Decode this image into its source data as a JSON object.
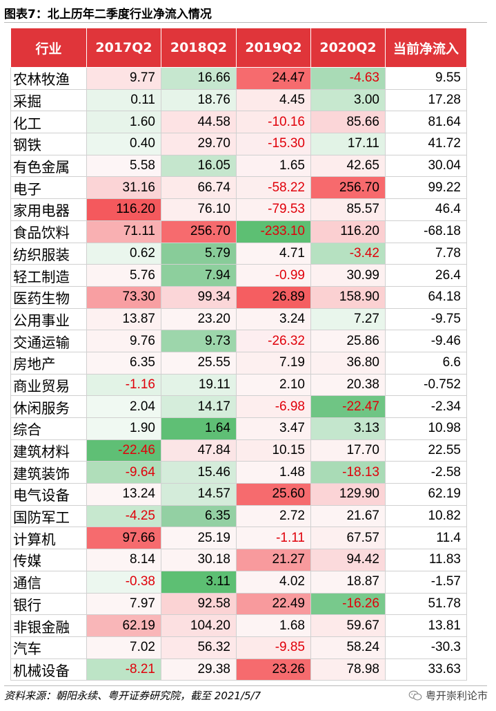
{
  "title": "图表7：北上历年二季度行业净流入情况",
  "table": {
    "headers": [
      "行业",
      "2017Q2",
      "2018Q2",
      "2019Q2",
      "2020Q2",
      "当前净流入"
    ],
    "rows": [
      [
        "农林牧渔",
        "9.77",
        "16.66",
        "24.47",
        "-4.63",
        "9.55"
      ],
      [
        "采掘",
        "0.11",
        "18.76",
        "4.45",
        "3.00",
        "17.28"
      ],
      [
        "化工",
        "1.60",
        "44.58",
        "-10.16",
        "85.66",
        "81.64"
      ],
      [
        "钢铁",
        "0.40",
        "29.70",
        "-15.30",
        "17.11",
        "41.72"
      ],
      [
        "有色金属",
        "5.58",
        "16.05",
        "1.65",
        "42.65",
        "30.04"
      ],
      [
        "电子",
        "31.16",
        "66.74",
        "-58.22",
        "256.70",
        "99.22"
      ],
      [
        "家用电器",
        "116.20",
        "76.10",
        "-79.53",
        "85.57",
        "46.4"
      ],
      [
        "食品饮料",
        "71.11",
        "256.70",
        "-233.10",
        "116.20",
        "-68.18"
      ],
      [
        "纺织服装",
        "0.62",
        "5.79",
        "4.71",
        "-3.42",
        "7.78"
      ],
      [
        "轻工制造",
        "5.76",
        "7.94",
        "-0.99",
        "30.99",
        "26.4"
      ],
      [
        "医药生物",
        "73.30",
        "99.34",
        "26.89",
        "158.90",
        "64.18"
      ],
      [
        "公用事业",
        "13.87",
        "23.20",
        "3.24",
        "7.27",
        "-9.75"
      ],
      [
        "交通运输",
        "9.76",
        "9.73",
        "-26.32",
        "25.86",
        "-9.46"
      ],
      [
        "房地产",
        "6.35",
        "25.55",
        "7.19",
        "36.80",
        "6.6"
      ],
      [
        "商业贸易",
        "-1.16",
        "19.11",
        "2.10",
        "20.38",
        "-0.752"
      ],
      [
        "休闲服务",
        "2.04",
        "14.17",
        "-6.98",
        "-22.47",
        "-2.34"
      ],
      [
        "综合",
        "1.90",
        "1.64",
        "3.47",
        "3.13",
        "10.98"
      ],
      [
        "建筑材料",
        "-22.46",
        "47.84",
        "10.15",
        "17.70",
        "22.55"
      ],
      [
        "建筑装饰",
        "-9.64",
        "15.46",
        "1.48",
        "-18.13",
        "-2.58"
      ],
      [
        "电气设备",
        "13.24",
        "14.57",
        "25.60",
        "129.90",
        "62.19"
      ],
      [
        "国防军工",
        "-4.25",
        "6.35",
        "2.72",
        "21.67",
        "10.82"
      ],
      [
        "计算机",
        "97.66",
        "25.19",
        "-1.11",
        "67.57",
        "11.4"
      ],
      [
        "传媒",
        "8.14",
        "30.18",
        "21.27",
        "94.42",
        "11.83"
      ],
      [
        "通信",
        "-0.38",
        "3.11",
        "4.02",
        "18.87",
        "-1.57"
      ],
      [
        "银行",
        "7.97",
        "92.58",
        "22.49",
        "-16.26",
        "51.78"
      ],
      [
        "非银金融",
        "62.19",
        "104.20",
        "1.68",
        "59.67",
        "13.81"
      ],
      [
        "汽车",
        "7.02",
        "56.32",
        "-9.85",
        "58.24",
        "-30.3"
      ],
      [
        "机械设备",
        "-8.21",
        "29.38",
        "23.26",
        "78.98",
        "33.63"
      ]
    ],
    "fills": [
      [
        "#ffffff",
        "#fde3e4",
        "#c6e7cf",
        "#f66b6e",
        "#a9dbb6",
        "#ffffff"
      ],
      [
        "#ffffff",
        "#e8f5eb",
        "#e6f4e9",
        "#fdeaea",
        "#c7e8cf",
        "#ffffff"
      ],
      [
        "#ffffff",
        "#e7f4ea",
        "#fde3e4",
        "#fdeaea",
        "#fbd6d8",
        "#ffffff"
      ],
      [
        "#ffffff",
        "#ecf7ef",
        "#fde8e9",
        "#fcedee",
        "#e2f3e6",
        "#ffffff"
      ],
      [
        "#ffffff",
        "#fdf5f6",
        "#c5e6cd",
        "#fdf1f2",
        "#fdeded",
        "#ffffff"
      ],
      [
        "#ffffff",
        "#fbd4d6",
        "#fdeaea",
        "#fceeee",
        "#f76a6d",
        "#ffffff"
      ],
      [
        "#ffffff",
        "#f4595d",
        "#fdeeee",
        "#fdf1f1",
        "#fdeded",
        "#ffffff"
      ],
      [
        "#ffffff",
        "#f9b0b2",
        "#f66b6e",
        "#5dbf73",
        "#fbcfd1",
        "#ffffff"
      ],
      [
        "#ffffff",
        "#eaf6ed",
        "#88cc99",
        "#fdf4f4",
        "#b6e1c1",
        "#ffffff"
      ],
      [
        "#ffffff",
        "#fdf4f4",
        "#8dcf9d",
        "#fdf3f3",
        "#fdf1f1",
        "#ffffff"
      ],
      [
        "#ffffff",
        "#f89fa2",
        "#fbd6d8",
        "#f55e61",
        "#fbd1d2",
        "#ffffff"
      ],
      [
        "#ffffff",
        "#fdf1f1",
        "#fdf4f4",
        "#fdf3f3",
        "#e9f6ec",
        "#ffffff"
      ],
      [
        "#ffffff",
        "#fdf3f3",
        "#9dd6ab",
        "#fdeef0",
        "#fdf4f4",
        "#ffffff"
      ],
      [
        "#ffffff",
        "#fdf5f5",
        "#fdf5f5",
        "#fdf0f0",
        "#fdf1f1",
        "#ffffff"
      ],
      [
        "#ffffff",
        "#e2f3e6",
        "#e3f3e7",
        "#fdf4f4",
        "#fdf4f4",
        "#ffffff"
      ],
      [
        "#ffffff",
        "#f0f9f2",
        "#d5eddb",
        "#fdeeee",
        "#6fc584",
        "#ffffff"
      ],
      [
        "#ffffff",
        "#f0f9f2",
        "#5fbf75",
        "#fdf2f2",
        "#c4e6cd",
        "#ffffff"
      ],
      [
        "#ffffff",
        "#5fbf75",
        "#fbe5e6",
        "#fdeded",
        "#fdf2f2",
        "#ffffff"
      ],
      [
        "#ffffff",
        "#b0deba",
        "#d4ecda",
        "#fdf4f4",
        "#a9dbb6",
        "#ffffff"
      ],
      [
        "#ffffff",
        "#fdf5f5",
        "#d4ecda",
        "#f66b6e",
        "#fbd4d6",
        "#ffffff"
      ],
      [
        "#ffffff",
        "#c7e8cf",
        "#93d0a3",
        "#fdf4f4",
        "#fdf4f4",
        "#ffffff"
      ],
      [
        "#ffffff",
        "#f66b6e",
        "#fdf5f5",
        "#fdf4f4",
        "#fdf0f0",
        "#ffffff"
      ],
      [
        "#ffffff",
        "#fdf5f5",
        "#fdf4f4",
        "#f89a9d",
        "#fbdadc",
        "#ffffff"
      ],
      [
        "#ffffff",
        "#ecf7ef",
        "#5dbf73",
        "#fdf4f4",
        "#fdf4f4",
        "#ffffff"
      ],
      [
        "#ffffff",
        "#fdf5f5",
        "#fbd3d4",
        "#f89a9d",
        "#78c98c",
        "#ffffff"
      ],
      [
        "#ffffff",
        "#f9b6b8",
        "#fce0e1",
        "#fdf4f4",
        "#fdeaea",
        "#ffffff"
      ],
      [
        "#ffffff",
        "#fdf5f5",
        "#fde8e9",
        "#fdeaea",
        "#fdf2f2",
        "#ffffff"
      ],
      [
        "#ffffff",
        "#bde4c6",
        "#fdf4f4",
        "#f66b6e",
        "#fdeeee",
        "#ffffff"
      ]
    ]
  },
  "source": "资料来源：朝阳永续、粤开证券研究院，截至 2021/5/7",
  "watermark": "粤开崇利论市"
}
